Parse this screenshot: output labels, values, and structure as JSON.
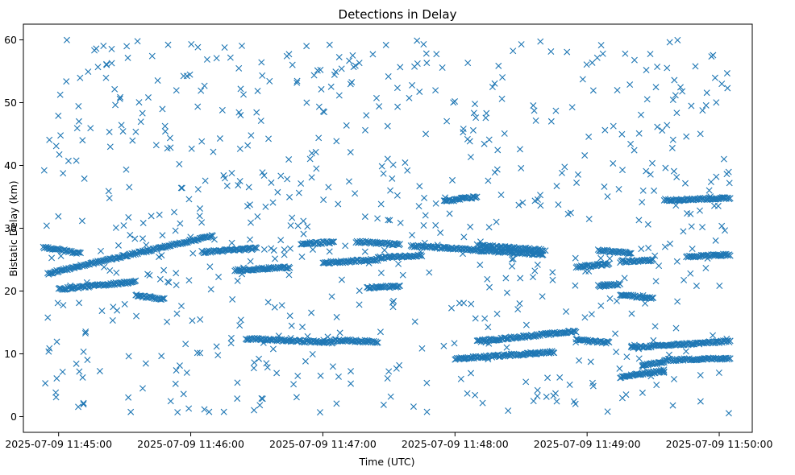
{
  "chart_data": {
    "type": "scatter",
    "title": "Detections in Delay",
    "xlabel": "Time (UTC)",
    "ylabel": "Bistatic Delay (km)",
    "marker": "x",
    "color": "#1f77b4",
    "grid": false,
    "legend": "none",
    "x_axis": {
      "kind": "time",
      "range": [
        "2025-07-09 11:44:44",
        "2025-07-09 11:50:15"
      ],
      "ticks": [
        "2025-07-09 11:45:00",
        "2025-07-09 11:46:00",
        "2025-07-09 11:47:00",
        "2025-07-09 11:48:00",
        "2025-07-09 11:49:00",
        "2025-07-09 11:50:00"
      ]
    },
    "y_axis": {
      "range": [
        -2.5,
        62.5
      ],
      "ticks": [
        "0",
        "10",
        "20",
        "30",
        "40",
        "50",
        "60"
      ]
    },
    "tracks": [
      {
        "t_start": "2025-07-09 11:44:53",
        "t_end": "2025-07-09 11:45:10",
        "delay_start": 27.0,
        "delay_end": 26.0
      },
      {
        "t_start": "2025-07-09 11:44:55",
        "t_end": "2025-07-09 11:46:10",
        "delay_start": 22.8,
        "delay_end": 28.8
      },
      {
        "t_start": "2025-07-09 11:45:00",
        "t_end": "2025-07-09 11:45:35",
        "delay_start": 20.3,
        "delay_end": 21.5
      },
      {
        "t_start": "2025-07-09 11:45:35",
        "t_end": "2025-07-09 11:45:48",
        "delay_start": 19.3,
        "delay_end": 18.7
      },
      {
        "t_start": "2025-07-09 11:46:05",
        "t_end": "2025-07-09 11:46:30",
        "delay_start": 26.2,
        "delay_end": 26.8
      },
      {
        "t_start": "2025-07-09 11:46:20",
        "t_end": "2025-07-09 11:46:45",
        "delay_start": 23.3,
        "delay_end": 23.8
      },
      {
        "t_start": "2025-07-09 11:46:25",
        "t_end": "2025-07-09 11:47:05",
        "delay_start": 12.4,
        "delay_end": 11.8
      },
      {
        "t_start": "2025-07-09 11:46:50",
        "t_end": "2025-07-09 11:47:05",
        "delay_start": 27.5,
        "delay_end": 27.8
      },
      {
        "t_start": "2025-07-09 11:47:00",
        "t_end": "2025-07-09 11:47:25",
        "delay_start": 24.5,
        "delay_end": 25.0
      },
      {
        "t_start": "2025-07-09 11:47:05",
        "t_end": "2025-07-09 11:47:25",
        "delay_start": 12.2,
        "delay_end": 11.9
      },
      {
        "t_start": "2025-07-09 11:47:15",
        "t_end": "2025-07-09 11:47:35",
        "delay_start": 27.9,
        "delay_end": 27.4
      },
      {
        "t_start": "2025-07-09 11:47:20",
        "t_end": "2025-07-09 11:47:35",
        "delay_start": 20.5,
        "delay_end": 20.8
      },
      {
        "t_start": "2025-07-09 11:47:25",
        "t_end": "2025-07-09 11:47:45",
        "delay_start": 25.3,
        "delay_end": 25.7
      },
      {
        "t_start": "2025-07-09 11:47:40",
        "t_end": "2025-07-09 11:48:40",
        "delay_start": 27.2,
        "delay_end": 25.8
      },
      {
        "t_start": "2025-07-09 11:47:55",
        "t_end": "2025-07-09 11:48:10",
        "delay_start": 34.3,
        "delay_end": 35.0
      },
      {
        "t_start": "2025-07-09 11:48:00",
        "t_end": "2025-07-09 11:48:45",
        "delay_start": 9.2,
        "delay_end": 10.3
      },
      {
        "t_start": "2025-07-09 11:48:10",
        "t_end": "2025-07-09 11:48:55",
        "delay_start": 12.0,
        "delay_end": 13.6
      },
      {
        "t_start": "2025-07-09 11:48:10",
        "t_end": "2025-07-09 11:48:40",
        "delay_start": 27.3,
        "delay_end": 26.5
      },
      {
        "t_start": "2025-07-09 11:48:55",
        "t_end": "2025-07-09 11:49:10",
        "delay_start": 23.8,
        "delay_end": 24.3
      },
      {
        "t_start": "2025-07-09 11:48:55",
        "t_end": "2025-07-09 11:49:10",
        "delay_start": 12.2,
        "delay_end": 11.8
      },
      {
        "t_start": "2025-07-09 11:49:05",
        "t_end": "2025-07-09 11:49:20",
        "delay_start": 26.5,
        "delay_end": 26.0
      },
      {
        "t_start": "2025-07-09 11:49:05",
        "t_end": "2025-07-09 11:49:15",
        "delay_start": 20.8,
        "delay_end": 21.1
      },
      {
        "t_start": "2025-07-09 11:49:15",
        "t_end": "2025-07-09 11:49:30",
        "delay_start": 24.7,
        "delay_end": 24.9
      },
      {
        "t_start": "2025-07-09 11:49:15",
        "t_end": "2025-07-09 11:49:30",
        "delay_start": 19.5,
        "delay_end": 18.8
      },
      {
        "t_start": "2025-07-09 11:49:15",
        "t_end": "2025-07-09 11:49:35",
        "delay_start": 6.3,
        "delay_end": 7.3
      },
      {
        "t_start": "2025-07-09 11:49:20",
        "t_end": "2025-07-09 11:50:05",
        "delay_start": 11.0,
        "delay_end": 12.0
      },
      {
        "t_start": "2025-07-09 11:49:25",
        "t_end": "2025-07-09 11:49:35",
        "delay_start": 8.3,
        "delay_end": 8.6
      },
      {
        "t_start": "2025-07-09 11:49:35",
        "t_end": "2025-07-09 11:50:05",
        "delay_start": 9.0,
        "delay_end": 9.3
      },
      {
        "t_start": "2025-07-09 11:49:35",
        "t_end": "2025-07-09 11:50:05",
        "delay_start": 34.5,
        "delay_end": 34.8
      },
      {
        "t_start": "2025-07-09 11:49:45",
        "t_end": "2025-07-09 11:50:05",
        "delay_start": 25.5,
        "delay_end": 25.8
      }
    ],
    "clutter": {
      "t_range": [
        "2025-07-09 11:44:53",
        "2025-07-09 11:50:05"
      ],
      "delay_range": [
        0.5,
        60.0
      ],
      "approx_count": 700
    }
  }
}
